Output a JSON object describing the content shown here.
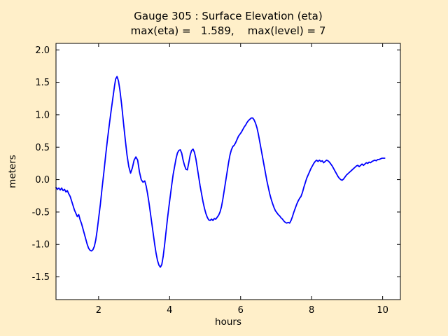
{
  "figure": {
    "background_color": "#ffefc9",
    "plot_background_color": "#ffffff",
    "frame_color": "#000000"
  },
  "chart_data": {
    "type": "line",
    "title": "Gauge 305 : Surface Elevation (eta)",
    "subtitle": "max(eta) =   1.589,    max(level) = 7",
    "max_eta": 1.589,
    "max_level": 7,
    "xlabel": "hours",
    "ylabel": "meters",
    "xlim": [
      0.8,
      10.5
    ],
    "ylim": [
      -1.85,
      2.1
    ],
    "grid": false,
    "legend": null,
    "xticks": [
      2,
      4,
      6,
      8,
      10
    ],
    "xtick_labels": [
      "2",
      "4",
      "6",
      "8",
      "10"
    ],
    "yticks": [
      2.0,
      1.5,
      1.0,
      0.5,
      0.0,
      -0.5,
      -1.0,
      -1.5
    ],
    "ytick_labels": [
      "2.0",
      "1.5",
      "1.0",
      "0.5",
      "0.0",
      "-0.5",
      "-1.0",
      "-1.5"
    ],
    "series": [
      {
        "name": "eta",
        "color": "#0000ff",
        "linewidth": 1.8,
        "points": [
          [
            0.8,
            -0.12
          ],
          [
            0.84,
            -0.15
          ],
          [
            0.88,
            -0.13
          ],
          [
            0.92,
            -0.16
          ],
          [
            0.96,
            -0.13
          ],
          [
            1.0,
            -0.17
          ],
          [
            1.04,
            -0.15
          ],
          [
            1.08,
            -0.19
          ],
          [
            1.12,
            -0.17
          ],
          [
            1.16,
            -0.22
          ],
          [
            1.2,
            -0.26
          ],
          [
            1.24,
            -0.33
          ],
          [
            1.28,
            -0.4
          ],
          [
            1.32,
            -0.47
          ],
          [
            1.36,
            -0.52
          ],
          [
            1.4,
            -0.57
          ],
          [
            1.44,
            -0.54
          ],
          [
            1.48,
            -0.62
          ],
          [
            1.52,
            -0.68
          ],
          [
            1.56,
            -0.76
          ],
          [
            1.6,
            -0.84
          ],
          [
            1.64,
            -0.92
          ],
          [
            1.68,
            -1.0
          ],
          [
            1.72,
            -1.06
          ],
          [
            1.76,
            -1.09
          ],
          [
            1.8,
            -1.1
          ],
          [
            1.84,
            -1.08
          ],
          [
            1.88,
            -1.03
          ],
          [
            1.92,
            -0.93
          ],
          [
            1.96,
            -0.78
          ],
          [
            2.0,
            -0.6
          ],
          [
            2.05,
            -0.38
          ],
          [
            2.1,
            -0.12
          ],
          [
            2.15,
            0.12
          ],
          [
            2.2,
            0.38
          ],
          [
            2.25,
            0.62
          ],
          [
            2.3,
            0.84
          ],
          [
            2.35,
            1.05
          ],
          [
            2.4,
            1.25
          ],
          [
            2.45,
            1.45
          ],
          [
            2.48,
            1.55
          ],
          [
            2.52,
            1.589
          ],
          [
            2.56,
            1.52
          ],
          [
            2.6,
            1.38
          ],
          [
            2.65,
            1.15
          ],
          [
            2.7,
            0.88
          ],
          [
            2.75,
            0.62
          ],
          [
            2.8,
            0.38
          ],
          [
            2.85,
            0.2
          ],
          [
            2.9,
            0.1
          ],
          [
            2.95,
            0.18
          ],
          [
            3.0,
            0.3
          ],
          [
            3.05,
            0.35
          ],
          [
            3.1,
            0.3
          ],
          [
            3.15,
            0.12
          ],
          [
            3.2,
            0.0
          ],
          [
            3.25,
            -0.04
          ],
          [
            3.3,
            -0.02
          ],
          [
            3.34,
            -0.1
          ],
          [
            3.38,
            -0.22
          ],
          [
            3.42,
            -0.36
          ],
          [
            3.46,
            -0.52
          ],
          [
            3.5,
            -0.68
          ],
          [
            3.54,
            -0.84
          ],
          [
            3.58,
            -1.0
          ],
          [
            3.62,
            -1.14
          ],
          [
            3.66,
            -1.25
          ],
          [
            3.7,
            -1.32
          ],
          [
            3.74,
            -1.35
          ],
          [
            3.78,
            -1.31
          ],
          [
            3.82,
            -1.18
          ],
          [
            3.86,
            -1.0
          ],
          [
            3.9,
            -0.8
          ],
          [
            3.94,
            -0.6
          ],
          [
            3.98,
            -0.42
          ],
          [
            4.02,
            -0.25
          ],
          [
            4.06,
            -0.08
          ],
          [
            4.1,
            0.08
          ],
          [
            4.14,
            0.2
          ],
          [
            4.18,
            0.32
          ],
          [
            4.22,
            0.41
          ],
          [
            4.26,
            0.45
          ],
          [
            4.3,
            0.46
          ],
          [
            4.34,
            0.41
          ],
          [
            4.38,
            0.3
          ],
          [
            4.42,
            0.22
          ],
          [
            4.46,
            0.16
          ],
          [
            4.5,
            0.15
          ],
          [
            4.54,
            0.26
          ],
          [
            4.58,
            0.38
          ],
          [
            4.62,
            0.45
          ],
          [
            4.66,
            0.47
          ],
          [
            4.7,
            0.42
          ],
          [
            4.74,
            0.32
          ],
          [
            4.78,
            0.18
          ],
          [
            4.82,
            0.04
          ],
          [
            4.86,
            -0.1
          ],
          [
            4.9,
            -0.22
          ],
          [
            4.94,
            -0.34
          ],
          [
            4.98,
            -0.44
          ],
          [
            5.02,
            -0.52
          ],
          [
            5.06,
            -0.58
          ],
          [
            5.1,
            -0.62
          ],
          [
            5.14,
            -0.63
          ],
          [
            5.18,
            -0.61
          ],
          [
            5.22,
            -0.63
          ],
          [
            5.26,
            -0.6
          ],
          [
            5.3,
            -0.61
          ],
          [
            5.34,
            -0.58
          ],
          [
            5.38,
            -0.55
          ],
          [
            5.42,
            -0.5
          ],
          [
            5.46,
            -0.42
          ],
          [
            5.5,
            -0.3
          ],
          [
            5.54,
            -0.16
          ],
          [
            5.58,
            -0.02
          ],
          [
            5.62,
            0.12
          ],
          [
            5.66,
            0.26
          ],
          [
            5.7,
            0.38
          ],
          [
            5.74,
            0.46
          ],
          [
            5.78,
            0.51
          ],
          [
            5.82,
            0.53
          ],
          [
            5.86,
            0.57
          ],
          [
            5.9,
            0.62
          ],
          [
            5.94,
            0.67
          ],
          [
            5.98,
            0.7
          ],
          [
            6.02,
            0.73
          ],
          [
            6.06,
            0.77
          ],
          [
            6.1,
            0.81
          ],
          [
            6.14,
            0.84
          ],
          [
            6.18,
            0.88
          ],
          [
            6.22,
            0.91
          ],
          [
            6.26,
            0.93
          ],
          [
            6.3,
            0.95
          ],
          [
            6.34,
            0.95
          ],
          [
            6.38,
            0.92
          ],
          [
            6.42,
            0.87
          ],
          [
            6.46,
            0.8
          ],
          [
            6.5,
            0.7
          ],
          [
            6.54,
            0.58
          ],
          [
            6.58,
            0.46
          ],
          [
            6.62,
            0.34
          ],
          [
            6.66,
            0.22
          ],
          [
            6.7,
            0.1
          ],
          [
            6.74,
            -0.02
          ],
          [
            6.78,
            -0.12
          ],
          [
            6.82,
            -0.22
          ],
          [
            6.86,
            -0.3
          ],
          [
            6.9,
            -0.37
          ],
          [
            6.94,
            -0.43
          ],
          [
            6.98,
            -0.48
          ],
          [
            7.02,
            -0.51
          ],
          [
            7.06,
            -0.54
          ],
          [
            7.1,
            -0.56
          ],
          [
            7.14,
            -0.59
          ],
          [
            7.18,
            -0.61
          ],
          [
            7.22,
            -0.64
          ],
          [
            7.26,
            -0.66
          ],
          [
            7.3,
            -0.67
          ],
          [
            7.34,
            -0.66
          ],
          [
            7.38,
            -0.67
          ],
          [
            7.42,
            -0.63
          ],
          [
            7.46,
            -0.57
          ],
          [
            7.5,
            -0.5
          ],
          [
            7.54,
            -0.44
          ],
          [
            7.58,
            -0.38
          ],
          [
            7.62,
            -0.33
          ],
          [
            7.66,
            -0.29
          ],
          [
            7.7,
            -0.26
          ],
          [
            7.74,
            -0.2
          ],
          [
            7.78,
            -0.12
          ],
          [
            7.82,
            -0.05
          ],
          [
            7.86,
            0.02
          ],
          [
            7.9,
            0.07
          ],
          [
            7.94,
            0.12
          ],
          [
            7.98,
            0.17
          ],
          [
            8.02,
            0.21
          ],
          [
            8.06,
            0.25
          ],
          [
            8.1,
            0.28
          ],
          [
            8.14,
            0.3
          ],
          [
            8.18,
            0.28
          ],
          [
            8.22,
            0.3
          ],
          [
            8.26,
            0.28
          ],
          [
            8.3,
            0.29
          ],
          [
            8.34,
            0.26
          ],
          [
            8.38,
            0.28
          ],
          [
            8.42,
            0.3
          ],
          [
            8.46,
            0.29
          ],
          [
            8.5,
            0.27
          ],
          [
            8.54,
            0.24
          ],
          [
            8.58,
            0.21
          ],
          [
            8.62,
            0.17
          ],
          [
            8.66,
            0.13
          ],
          [
            8.7,
            0.09
          ],
          [
            8.74,
            0.05
          ],
          [
            8.78,
            0.02
          ],
          [
            8.82,
            0.0
          ],
          [
            8.86,
            -0.01
          ],
          [
            8.9,
            0.01
          ],
          [
            8.94,
            0.04
          ],
          [
            8.98,
            0.07
          ],
          [
            9.02,
            0.09
          ],
          [
            9.06,
            0.11
          ],
          [
            9.1,
            0.13
          ],
          [
            9.14,
            0.15
          ],
          [
            9.18,
            0.17
          ],
          [
            9.22,
            0.19
          ],
          [
            9.26,
            0.21
          ],
          [
            9.3,
            0.22
          ],
          [
            9.34,
            0.2
          ],
          [
            9.38,
            0.22
          ],
          [
            9.42,
            0.24
          ],
          [
            9.46,
            0.22
          ],
          [
            9.5,
            0.24
          ],
          [
            9.54,
            0.26
          ],
          [
            9.58,
            0.25
          ],
          [
            9.62,
            0.27
          ],
          [
            9.66,
            0.26
          ],
          [
            9.7,
            0.28
          ],
          [
            9.74,
            0.29
          ],
          [
            9.78,
            0.3
          ],
          [
            9.82,
            0.29
          ],
          [
            9.86,
            0.31
          ],
          [
            9.9,
            0.31
          ],
          [
            9.94,
            0.32
          ],
          [
            9.98,
            0.33
          ],
          [
            10.02,
            0.33
          ],
          [
            10.06,
            0.33
          ]
        ]
      }
    ]
  }
}
